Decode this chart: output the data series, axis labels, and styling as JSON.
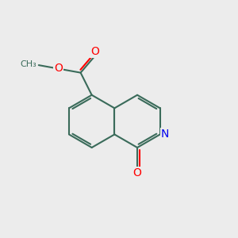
{
  "bg_color": "#ececec",
  "bond_color": "#3a6b5a",
  "bond_width": 1.5,
  "atom_colors": {
    "O": "#ff0000",
    "N": "#0000ee",
    "C": "#3a6b5a"
  },
  "font_size": 9,
  "fig_size": [
    3.0,
    3.0
  ],
  "dpi": 100,
  "bl": 1.15
}
